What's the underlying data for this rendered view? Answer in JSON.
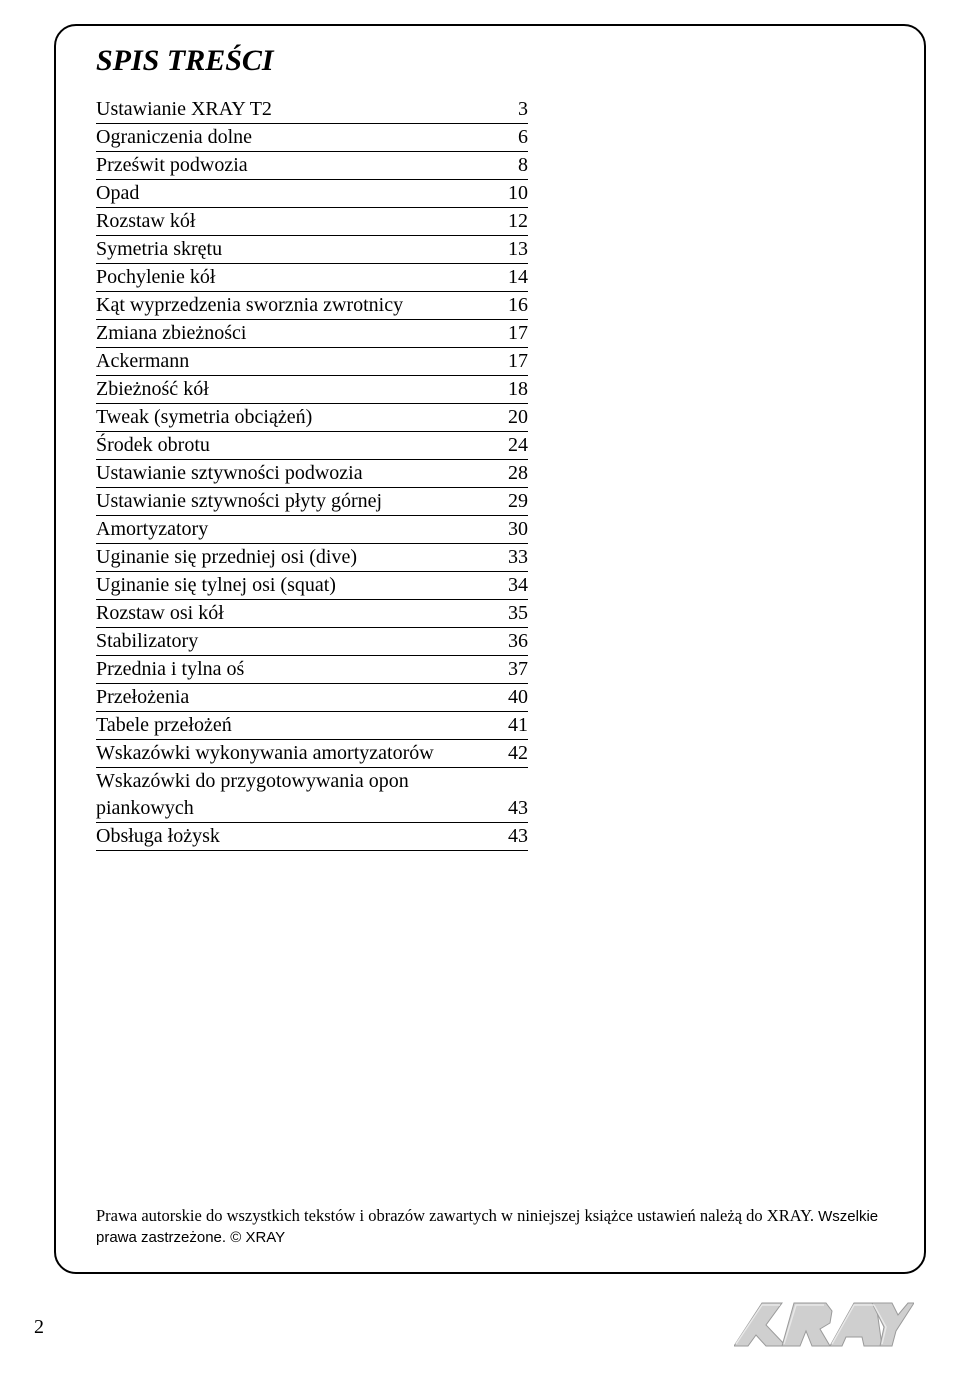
{
  "title": "SPIS TREŚCI",
  "toc": [
    {
      "label": "Ustawianie XRAY T2",
      "page": "3"
    },
    {
      "label": "Ograniczenia dolne",
      "page": "6"
    },
    {
      "label": "Prześwit podwozia",
      "page": "8"
    },
    {
      "label": "Opad",
      "page": "10"
    },
    {
      "label": "Rozstaw kół",
      "page": "12"
    },
    {
      "label": "Symetria skrętu",
      "page": "13"
    },
    {
      "label": "Pochylenie kół",
      "page": "14"
    },
    {
      "label": "Kąt wyprzedzenia sworznia zwrotnicy",
      "page": "16"
    },
    {
      "label": "Zmiana zbieżności",
      "page": "17"
    },
    {
      "label": "Ackermann",
      "page": "17"
    },
    {
      "label": "Zbieżność kół",
      "page": "18"
    },
    {
      "label": "Tweak (symetria obciążeń)",
      "page": "20"
    },
    {
      "label": "Środek obrotu",
      "page": "24"
    },
    {
      "label": "Ustawianie sztywności podwozia",
      "page": "28"
    },
    {
      "label": "Ustawianie sztywności płyty górnej",
      "page": "29"
    },
    {
      "label": "Amortyzatory",
      "page": "30"
    },
    {
      "label": "Uginanie się przedniej osi (dive)",
      "page": "33"
    },
    {
      "label": "Uginanie się tylnej osi (squat)",
      "page": "34"
    },
    {
      "label": "Rozstaw osi kół",
      "page": "35"
    },
    {
      "label": "Stabilizatory",
      "page": "36"
    },
    {
      "label": "Przednia i tylna oś",
      "page": "37"
    },
    {
      "label": "Przełożenia",
      "page": "40"
    },
    {
      "label": "Tabele przełożeń",
      "page": "41"
    },
    {
      "label": "Wskazówki wykonywania amortyzatorów",
      "page": "42"
    },
    {
      "label": "Wskazówki do przygotowywania opon piankowych",
      "page": "43"
    },
    {
      "label": "Obsługa łożysk",
      "page": "43"
    }
  ],
  "copyright": {
    "line1": "Prawa autorskie do wszystkich tekstów i obrazów zawartych w niniejszej książce ustawień należą do XRAY. ",
    "line2": "Wszelkie prawa zastrzeżone. © XRAY"
  },
  "pageNumber": "2",
  "colors": {
    "text": "#000000",
    "background": "#ffffff",
    "border": "#000000",
    "logoFill": "#cfcfcf",
    "logoStrokeLight": "#e8e8e8",
    "logoStrokeDark": "#9a9a9a"
  }
}
